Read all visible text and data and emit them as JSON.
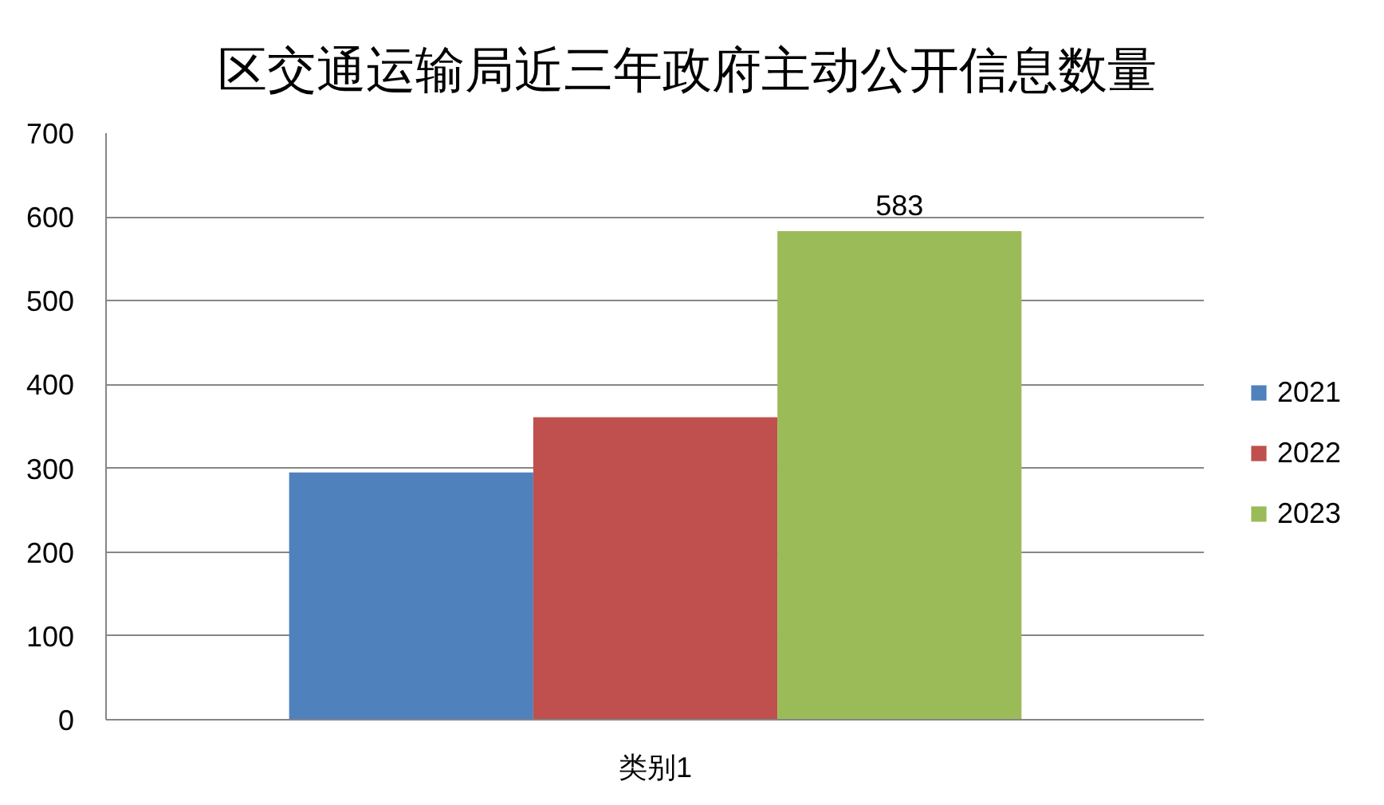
{
  "chart_data": {
    "type": "bar",
    "title": "区交通运输局近三年政府主动公开信息数量",
    "categories": [
      "类别1"
    ],
    "series": [
      {
        "name": "2021",
        "color": "#4f81bd",
        "values": [
          295
        ],
        "value_labels": [
          null
        ]
      },
      {
        "name": "2022",
        "color": "#c0504d",
        "values": [
          361
        ],
        "value_labels": [
          null
        ]
      },
      {
        "name": "2023",
        "color": "#9bbb59",
        "values": [
          583
        ],
        "value_labels": [
          "583"
        ]
      }
    ],
    "ylim": [
      0,
      700
    ],
    "yticks": [
      0,
      100,
      200,
      300,
      400,
      500,
      600,
      700
    ],
    "grid": "y",
    "legend": "right"
  }
}
